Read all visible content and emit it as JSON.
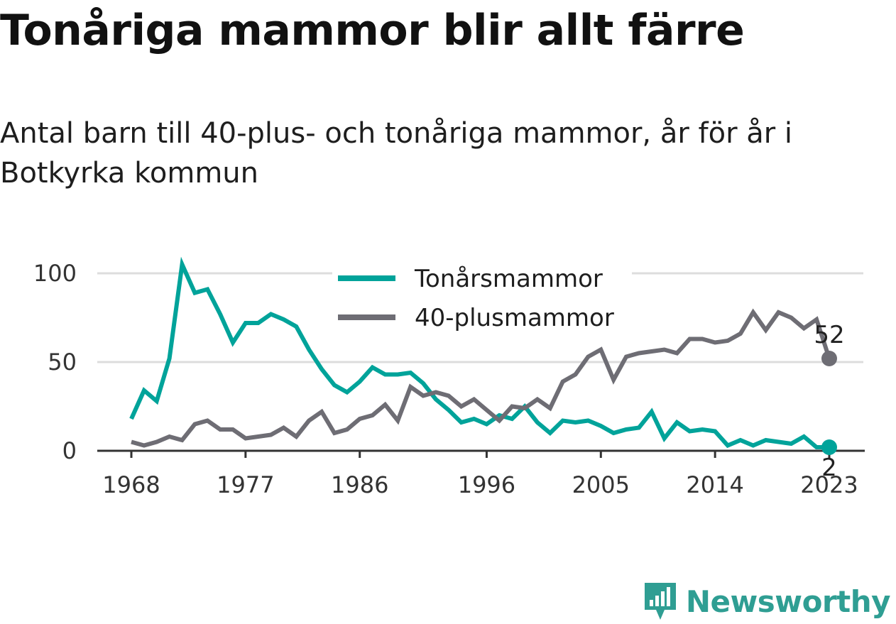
{
  "title": "Tonåriga mammor blir allt färre",
  "subtitle": "Antal barn till 40-plus- och tonåriga mammor, år för år i Botkyrka kommun",
  "brand": {
    "name": "Newsworthy",
    "icon": "newsworthy-logo-icon"
  },
  "colors": {
    "teen": "#00a39a",
    "forty": "#6e6d74",
    "grid": "#dddddd",
    "axis": "#333333"
  },
  "chart_data": {
    "type": "line",
    "x_ticks": [
      "1968",
      "1977",
      "1986",
      "1996",
      "2005",
      "2014",
      "2023"
    ],
    "y_ticks": [
      "0",
      "50",
      "100"
    ],
    "ylim": [
      0,
      105
    ],
    "x": [
      1968,
      1969,
      1970,
      1971,
      1972,
      1973,
      1974,
      1975,
      1976,
      1977,
      1978,
      1979,
      1980,
      1981,
      1982,
      1983,
      1984,
      1985,
      1986,
      1987,
      1988,
      1989,
      1990,
      1991,
      1992,
      1993,
      1994,
      1995,
      1996,
      1997,
      1998,
      1999,
      2000,
      2001,
      2002,
      2003,
      2004,
      2005,
      2006,
      2007,
      2008,
      2009,
      2010,
      2011,
      2012,
      2013,
      2014,
      2015,
      2016,
      2017,
      2018,
      2019,
      2020,
      2021,
      2022,
      2023
    ],
    "grid": "horizontal",
    "legend_position": "top-center",
    "series": [
      {
        "name": "Tonårsmammor",
        "color": "#00a39a",
        "values": [
          18,
          34,
          28,
          52,
          105,
          89,
          91,
          77,
          61,
          72,
          72,
          77,
          74,
          70,
          57,
          46,
          37,
          33,
          39,
          47,
          43,
          43,
          44,
          38,
          29,
          23,
          16,
          18,
          15,
          20,
          18,
          25,
          16,
          10,
          17,
          16,
          17,
          14,
          10,
          12,
          13,
          22,
          7,
          16,
          11,
          12,
          11,
          3,
          6,
          3,
          6,
          5,
          4,
          8,
          2,
          2
        ],
        "end_label": "2"
      },
      {
        "name": "40-plusmammor",
        "color": "#6e6d74",
        "values": [
          5,
          3,
          5,
          8,
          6,
          15,
          17,
          12,
          12,
          7,
          8,
          9,
          13,
          8,
          17,
          22,
          10,
          12,
          18,
          20,
          26,
          17,
          36,
          31,
          33,
          31,
          25,
          29,
          23,
          17,
          25,
          24,
          29,
          24,
          39,
          43,
          53,
          57,
          40,
          53,
          55,
          56,
          57,
          55,
          63,
          63,
          61,
          62,
          66,
          78,
          68,
          78,
          75,
          69,
          74,
          52
        ],
        "end_label": "52"
      }
    ]
  }
}
